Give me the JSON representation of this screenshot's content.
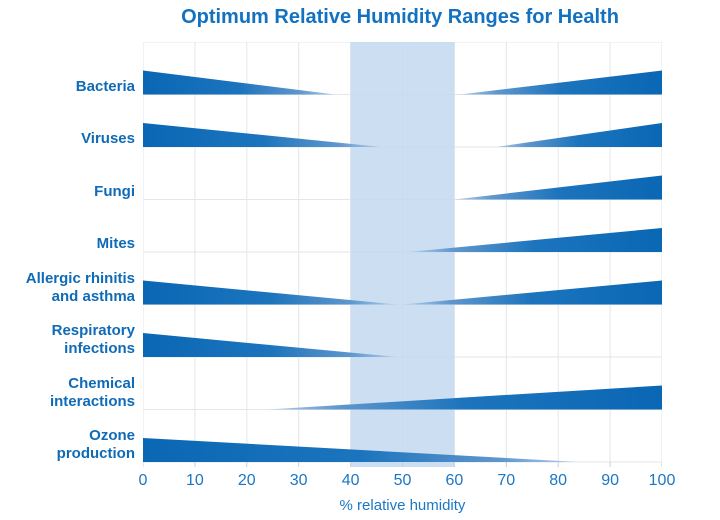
{
  "title": "Optimum Relative Humidity Ranges for Health",
  "x_axis": {
    "label": "% relative humidity",
    "ticks": [
      0,
      10,
      20,
      30,
      40,
      50,
      60,
      70,
      80,
      90,
      100
    ],
    "min": 0,
    "max": 100
  },
  "optimum_band": {
    "from": 40,
    "to": 60,
    "color": "#c5d9f0"
  },
  "colors": {
    "title_text": "#1272c1",
    "category_text": "#0f6bb7",
    "tick_text": "#1b77c5",
    "wedge_dark": "#0a67b4",
    "wedge_mid": "#5f97cd",
    "wedge_light": "#b7d0ea",
    "gridline": "#e3e6ea",
    "band": "#c5d9f0",
    "background": "#ffffff"
  },
  "chart_data": {
    "type": "area",
    "subtype": "wedge-range",
    "title": "Optimum Relative Humidity Ranges for Health",
    "xlabel": "% relative humidity",
    "xlim": [
      0,
      100
    ],
    "grid": true,
    "optimum_band": {
      "from": 40,
      "to": 60
    },
    "categories": [
      "Bacteria",
      "Viruses",
      "Fungi",
      "Mites",
      "Allergic rhinitis and asthma",
      "Respiratory infections",
      "Chemical interactions",
      "Ozone production"
    ],
    "rows": [
      {
        "label": "Bacteria",
        "label_lines": [
          "Bacteria"
        ],
        "wedges": [
          {
            "start": 0,
            "end": 37,
            "trend": "decreasing"
          },
          {
            "start": 61,
            "end": 100,
            "trend": "increasing"
          }
        ]
      },
      {
        "label": "Viruses",
        "label_lines": [
          "Viruses"
        ],
        "wedges": [
          {
            "start": 0,
            "end": 46,
            "trend": "decreasing"
          },
          {
            "start": 68,
            "end": 100,
            "trend": "increasing"
          }
        ]
      },
      {
        "label": "Fungi",
        "label_lines": [
          "Fungi"
        ],
        "wedges": [
          {
            "start": 60,
            "end": 100,
            "trend": "increasing"
          }
        ]
      },
      {
        "label": "Mites",
        "label_lines": [
          "Mites"
        ],
        "wedges": [
          {
            "start": 51,
            "end": 100,
            "trend": "increasing"
          }
        ]
      },
      {
        "label": "Allergic rhinitis and asthma",
        "label_lines": [
          "Allergic rhinitis",
          "and asthma"
        ],
        "wedges": [
          {
            "start": 0,
            "end": 49,
            "trend": "decreasing"
          },
          {
            "start": 50,
            "end": 100,
            "trend": "increasing"
          }
        ]
      },
      {
        "label": "Respiratory infections",
        "label_lines": [
          "Respiratory",
          "infections"
        ],
        "wedges": [
          {
            "start": 0,
            "end": 49,
            "trend": "decreasing"
          }
        ]
      },
      {
        "label": "Chemical interactions",
        "label_lines": [
          "Chemical",
          "interactions"
        ],
        "wedges": [
          {
            "start": 24,
            "end": 100,
            "trend": "increasing"
          }
        ]
      },
      {
        "label": "Ozone production",
        "label_lines": [
          "Ozone",
          "production"
        ],
        "wedges": [
          {
            "start": 0,
            "end": 84,
            "trend": "decreasing"
          }
        ]
      }
    ]
  }
}
